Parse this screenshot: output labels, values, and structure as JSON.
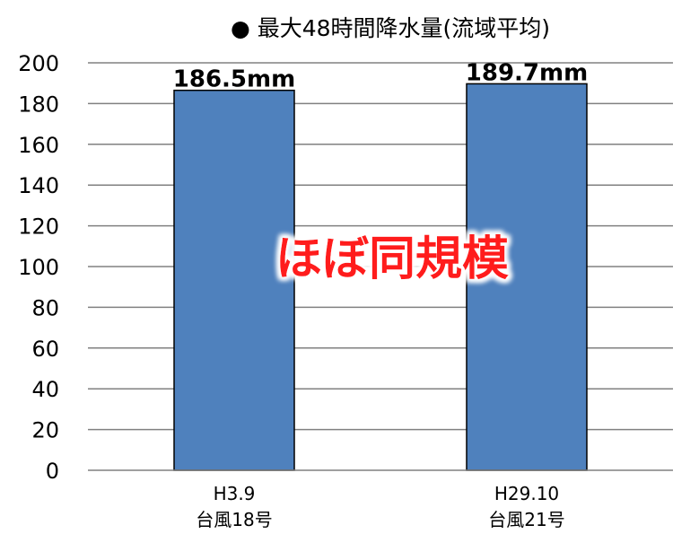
{
  "chart_data": {
    "type": "bar",
    "title": "● 最大48時間降水量(流域平均)",
    "categories": [
      [
        "H3.9",
        "台風18号"
      ],
      [
        "H29.10",
        "台風21号"
      ]
    ],
    "values": [
      186.5,
      189.7
    ],
    "data_labels": [
      "186.5mm",
      "189.7mm"
    ],
    "yticks": [
      "0",
      "20",
      "40",
      "60",
      "80",
      "100",
      "120",
      "140",
      "160",
      "180",
      "200"
    ],
    "ylim": [
      0,
      200
    ],
    "grid": true,
    "annotation": "ほぼ同規模",
    "colors": {
      "bar_fill": "#4f81bd",
      "bar_stroke": "#000000",
      "grid": "#808080",
      "annotation": "#ff1a1a",
      "annotation_glow": "#ffffff"
    }
  }
}
